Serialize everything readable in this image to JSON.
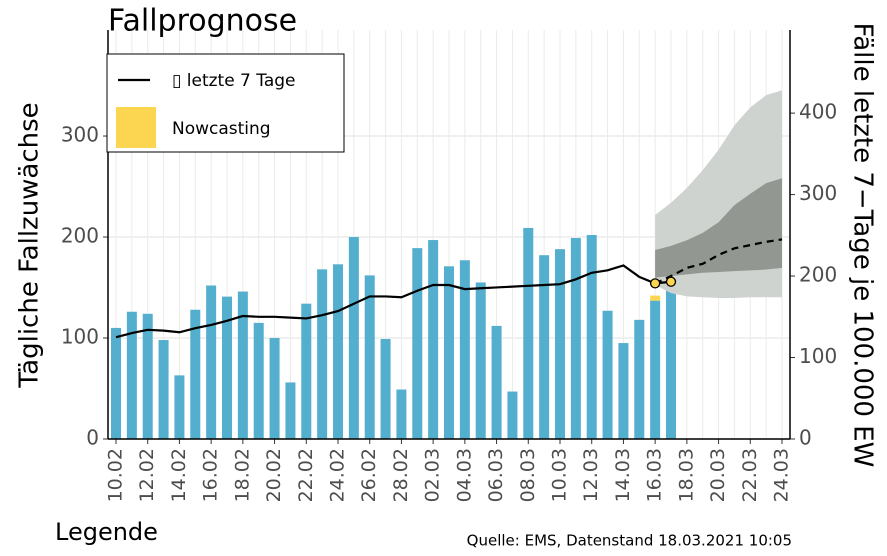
{
  "chart_data": {
    "type": "bar",
    "title": "Fallprognose",
    "y_label": "Tägliche Fallzuwächse",
    "y2_label": "Fälle letzte 7−Tage je 100.000 EW",
    "legend_title": "Legende",
    "source": "Quelle: EMS, Datenstand 18.03.2021 10:05",
    "categories": [
      "10.02",
      null,
      "12.02",
      null,
      "14.02",
      null,
      "16.02",
      null,
      "18.02",
      null,
      "20.02",
      null,
      "22.02",
      null,
      "24.02",
      null,
      "26.02",
      null,
      "28.02",
      null,
      "02.03",
      null,
      "04.03",
      null,
      "06.03",
      null,
      "08.03",
      null,
      "10.03",
      null,
      "12.03",
      null,
      "14.03",
      null,
      "16.03",
      null,
      "18.03",
      null,
      "20.03",
      null,
      "22.03",
      null,
      "24.03"
    ],
    "ylim": [
      0,
      405
    ],
    "yticks": [
      0,
      100,
      200,
      300
    ],
    "y2lim": [
      0,
      502
    ],
    "y2ticks": [
      0,
      100,
      200,
      300,
      400
    ],
    "grid": true,
    "legend": "top-left",
    "series": [
      {
        "type": "bar",
        "color": "#54aece",
        "values": [
          110,
          126,
          124,
          98,
          63,
          128,
          152,
          141,
          146,
          115,
          100,
          56,
          134,
          168,
          173,
          200,
          162,
          99,
          49,
          189,
          197,
          171,
          177,
          155,
          112,
          47,
          209,
          182,
          188,
          199,
          202,
          127,
          95,
          118,
          137,
          176,
          null,
          null,
          null,
          null,
          null,
          null,
          null
        ]
      },
      {
        "type": "bar",
        "name": "Nowcasting",
        "color": "#fdd651",
        "stacked": true,
        "values": [
          null,
          null,
          null,
          null,
          null,
          null,
          null,
          null,
          null,
          null,
          null,
          null,
          null,
          null,
          null,
          null,
          null,
          null,
          null,
          null,
          null,
          null,
          null,
          null,
          null,
          null,
          null,
          null,
          null,
          null,
          null,
          null,
          null,
          null,
          5,
          28,
          null,
          null,
          null,
          null,
          null,
          null,
          null
        ]
      },
      {
        "type": "band",
        "axis": "y2",
        "color": "#cfd3d0",
        "upper": [
          null,
          null,
          null,
          null,
          null,
          null,
          null,
          null,
          null,
          null,
          null,
          null,
          null,
          null,
          null,
          null,
          null,
          null,
          null,
          null,
          null,
          null,
          null,
          null,
          null,
          null,
          null,
          null,
          null,
          null,
          null,
          null,
          null,
          null,
          275,
          290,
          308,
          330,
          355,
          385,
          407,
          422,
          428
        ],
        "lower": [
          null,
          null,
          null,
          null,
          null,
          null,
          null,
          null,
          null,
          null,
          null,
          null,
          null,
          null,
          null,
          null,
          null,
          null,
          null,
          null,
          null,
          null,
          null,
          null,
          null,
          null,
          null,
          null,
          null,
          null,
          null,
          null,
          null,
          null,
          189,
          179,
          175,
          174,
          173,
          173,
          174,
          174,
          174
        ]
      },
      {
        "type": "band",
        "axis": "y2",
        "color": "#939791",
        "upper": [
          null,
          null,
          null,
          null,
          null,
          null,
          null,
          null,
          null,
          null,
          null,
          null,
          null,
          null,
          null,
          null,
          null,
          null,
          null,
          null,
          null,
          null,
          null,
          null,
          null,
          null,
          null,
          null,
          null,
          null,
          null,
          null,
          null,
          null,
          232,
          237,
          244,
          253,
          266,
          287,
          301,
          314,
          320
        ],
        "lower": [
          null,
          null,
          null,
          null,
          null,
          null,
          null,
          null,
          null,
          null,
          null,
          null,
          null,
          null,
          null,
          null,
          null,
          null,
          null,
          null,
          null,
          null,
          null,
          null,
          null,
          null,
          null,
          null,
          null,
          null,
          null,
          null,
          null,
          null,
          198,
          200,
          202,
          204,
          205,
          206,
          207,
          208,
          210
        ]
      },
      {
        "type": "line",
        "axis": "y2",
        "name": "▯ letzte 7 Tage",
        "color": "#000000",
        "values": [
          125,
          130,
          134,
          133,
          131,
          136,
          140,
          145,
          151,
          150,
          150,
          149,
          148,
          152,
          157,
          166,
          175,
          175,
          174,
          182,
          189,
          189,
          184,
          185,
          186,
          187,
          188,
          189,
          190,
          196,
          204,
          207,
          213,
          199,
          191,
          193,
          null,
          null,
          null,
          null,
          null,
          null,
          null
        ]
      },
      {
        "type": "line",
        "axis": "y2",
        "color": "#000000",
        "dashed": true,
        "values": [
          null,
          null,
          null,
          null,
          null,
          null,
          null,
          null,
          null,
          null,
          null,
          null,
          null,
          null,
          null,
          null,
          null,
          null,
          null,
          null,
          null,
          null,
          null,
          null,
          null,
          null,
          null,
          null,
          null,
          null,
          null,
          null,
          null,
          null,
          191,
          200,
          210,
          215,
          226,
          234,
          238,
          242,
          245
        ]
      }
    ]
  }
}
